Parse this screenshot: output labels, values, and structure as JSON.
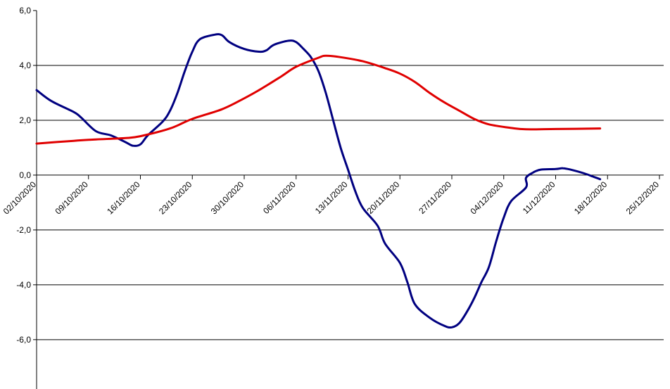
{
  "chart_data": {
    "type": "line",
    "title": "",
    "xlabel": "",
    "ylabel": "",
    "ylim": [
      -7.8,
      6.0
    ],
    "x_ticks": [
      "02/10/2020",
      "09/10/2020",
      "16/10/2020",
      "23/10/2020",
      "30/10/2020",
      "06/11/2020",
      "13/11/2020",
      "20/11/2020",
      "27/11/2020",
      "04/12/2020",
      "11/12/2020",
      "18/12/2020",
      "25/12/2020"
    ],
    "y_ticks": [
      {
        "value": 6,
        "label": "6,0"
      },
      {
        "value": 4,
        "label": "4,0"
      },
      {
        "value": 2,
        "label": "2,0"
      },
      {
        "value": 0,
        "label": "0,0"
      },
      {
        "value": -2,
        "label": "-2,0"
      },
      {
        "value": -4,
        "label": "-4,0"
      },
      {
        "value": -6,
        "label": "-6,0"
      }
    ],
    "gridlines": [
      4,
      2,
      0,
      -2,
      -4,
      -6
    ],
    "series": [
      {
        "color": "#000080",
        "points": [
          [
            "02/10/2020",
            3.1
          ],
          [
            "04/10/2020",
            2.7
          ],
          [
            "07/10/2020",
            2.3
          ],
          [
            "08/10/2020",
            2.1
          ],
          [
            "10/10/2020",
            1.6
          ],
          [
            "12/10/2020",
            1.45
          ],
          [
            "14/10/2020",
            1.2
          ],
          [
            "15/10/2020",
            1.07
          ],
          [
            "16/10/2020",
            1.12
          ],
          [
            "17/10/2020",
            1.45
          ],
          [
            "19/10/2020",
            1.95
          ],
          [
            "20/10/2020",
            2.35
          ],
          [
            "21/10/2020",
            3.0
          ],
          [
            "22/10/2020",
            3.8
          ],
          [
            "23/10/2020",
            4.5
          ],
          [
            "24/10/2020",
            4.95
          ],
          [
            "26/10/2020",
            5.12
          ],
          [
            "27/10/2020",
            5.1
          ],
          [
            "28/10/2020",
            4.85
          ],
          [
            "30/10/2020",
            4.6
          ],
          [
            "01/11/2020",
            4.5
          ],
          [
            "02/11/2020",
            4.55
          ],
          [
            "03/11/2020",
            4.75
          ],
          [
            "05/11/2020",
            4.9
          ],
          [
            "06/11/2020",
            4.85
          ],
          [
            "07/11/2020",
            4.6
          ],
          [
            "08/11/2020",
            4.3
          ],
          [
            "09/11/2020",
            3.8
          ],
          [
            "10/11/2020",
            3.0
          ],
          [
            "11/11/2020",
            2.0
          ],
          [
            "12/11/2020",
            1.0
          ],
          [
            "13/11/2020",
            0.2
          ],
          [
            "14/11/2020",
            -0.6
          ],
          [
            "15/11/2020",
            -1.2
          ],
          [
            "17/11/2020",
            -1.85
          ],
          [
            "18/11/2020",
            -2.5
          ],
          [
            "20/11/2020",
            -3.2
          ],
          [
            "21/11/2020",
            -3.9
          ],
          [
            "22/11/2020",
            -4.7
          ],
          [
            "24/11/2020",
            -5.2
          ],
          [
            "26/11/2020",
            -5.5
          ],
          [
            "27/11/2020",
            -5.55
          ],
          [
            "28/11/2020",
            -5.4
          ],
          [
            "29/11/2020",
            -5.0
          ],
          [
            "30/11/2020",
            -4.5
          ],
          [
            "01/12/2020",
            -3.9
          ],
          [
            "02/12/2020",
            -3.35
          ],
          [
            "03/12/2020",
            -2.4
          ],
          [
            "04/12/2020",
            -1.55
          ],
          [
            "05/12/2020",
            -0.95
          ],
          [
            "07/12/2020",
            -0.45
          ],
          [
            "07/12/2020",
            -0.1
          ],
          [
            "08/12/2020",
            0.1
          ],
          [
            "09/12/2020",
            0.2
          ],
          [
            "11/12/2020",
            0.22
          ],
          [
            "12/12/2020",
            0.25
          ],
          [
            "13/12/2020",
            0.2
          ],
          [
            "15/12/2020",
            0.05
          ],
          [
            "16/12/2020",
            -0.05
          ],
          [
            "17/12/2020",
            -0.15
          ]
        ]
      },
      {
        "color": "#e00000",
        "points": [
          [
            "02/10/2020",
            1.15
          ],
          [
            "07/10/2020",
            1.25
          ],
          [
            "10/10/2020",
            1.3
          ],
          [
            "14/10/2020",
            1.35
          ],
          [
            "16/10/2020",
            1.42
          ],
          [
            "20/10/2020",
            1.7
          ],
          [
            "23/10/2020",
            2.05
          ],
          [
            "27/10/2020",
            2.4
          ],
          [
            "30/10/2020",
            2.8
          ],
          [
            "01/11/2020",
            3.1
          ],
          [
            "04/11/2020",
            3.6
          ],
          [
            "06/11/2020",
            3.95
          ],
          [
            "09/11/2020",
            4.28
          ],
          [
            "10/11/2020",
            4.35
          ],
          [
            "12/11/2020",
            4.3
          ],
          [
            "15/11/2020",
            4.15
          ],
          [
            "18/11/2020",
            3.9
          ],
          [
            "20/11/2020",
            3.7
          ],
          [
            "22/11/2020",
            3.4
          ],
          [
            "24/11/2020",
            3.0
          ],
          [
            "26/11/2020",
            2.65
          ],
          [
            "28/11/2020",
            2.35
          ],
          [
            "30/11/2020",
            2.05
          ],
          [
            "02/12/2020",
            1.85
          ],
          [
            "05/12/2020",
            1.72
          ],
          [
            "07/12/2020",
            1.67
          ],
          [
            "11/12/2020",
            1.68
          ],
          [
            "17/12/2020",
            1.7
          ]
        ]
      }
    ]
  }
}
